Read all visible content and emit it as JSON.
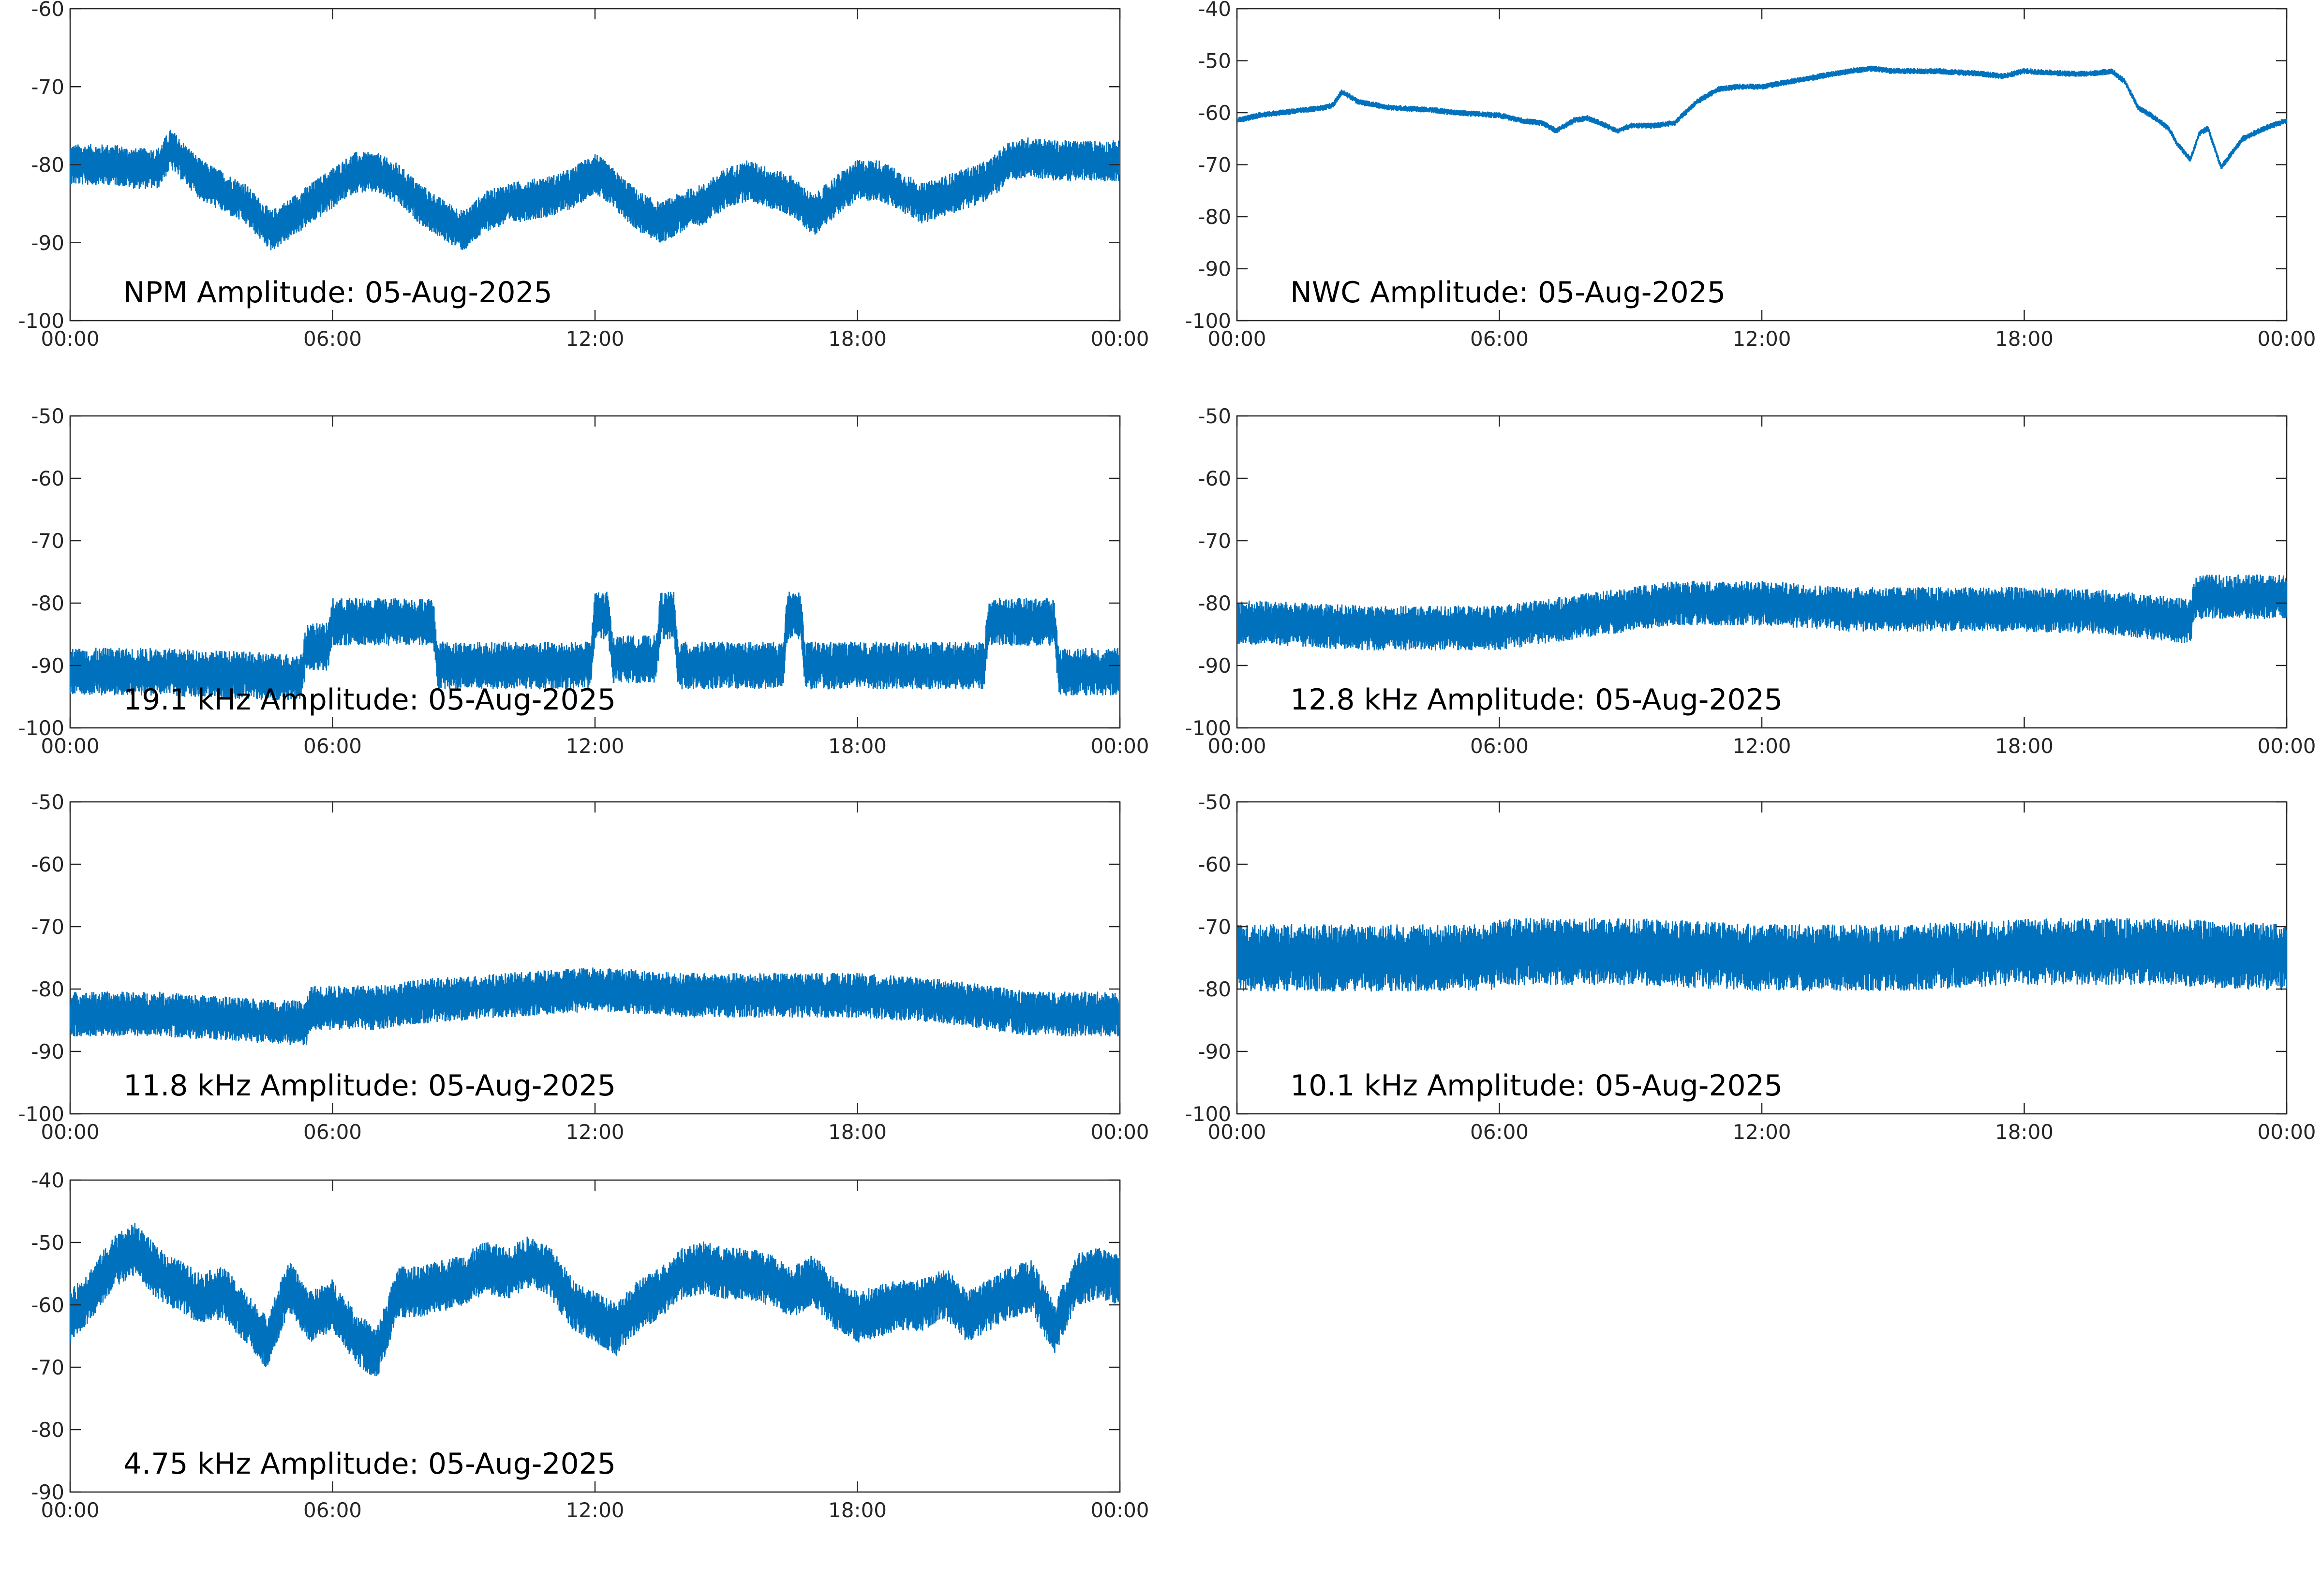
{
  "chart_data": [
    {
      "type": "line",
      "title": "NPM Amplitude: 05-Aug-2025",
      "xlabel": "",
      "ylabel": "",
      "x_tick_labels": [
        "00:00",
        "06:00",
        "12:00",
        "18:00",
        "00:00"
      ],
      "xlim": [
        0,
        24
      ],
      "ylim": [
        -100,
        -60
      ],
      "y_ticks": [
        -60,
        -70,
        -80,
        -90,
        -100
      ],
      "grid": false,
      "series": [
        {
          "color": "#0072bd",
          "x": [
            0,
            1,
            1.5,
            2,
            2.3,
            3,
            4,
            4.6,
            5,
            5.5,
            6,
            6.5,
            7,
            7.5,
            8,
            8.5,
            9,
            9.5,
            10,
            10.5,
            11,
            11.5,
            12,
            12.5,
            13,
            13.5,
            14,
            14.5,
            15,
            15.5,
            16,
            16.5,
            17,
            17.5,
            18,
            18.5,
            19,
            19.5,
            20,
            20.5,
            21,
            21.5,
            22,
            22.5,
            23,
            23.5,
            24
          ],
          "y": [
            -80,
            -80,
            -80.5,
            -80.5,
            -78,
            -82,
            -85,
            -88.5,
            -87,
            -85,
            -83,
            -81,
            -81,
            -82.5,
            -85,
            -87,
            -88.5,
            -86,
            -85,
            -84.5,
            -84,
            -83,
            -81,
            -83.5,
            -86,
            -87.5,
            -86,
            -85,
            -83,
            -82,
            -83,
            -84,
            -86.5,
            -84,
            -82,
            -82,
            -83.5,
            -85,
            -84,
            -83,
            -82,
            -79.5,
            -79,
            -79.5,
            -79.5,
            -79.5,
            -79.5
          ],
          "noise": 2.2
        }
      ]
    },
    {
      "type": "line",
      "title": "NWC Amplitude: 05-Aug-2025",
      "xlabel": "",
      "ylabel": "",
      "x_tick_labels": [
        "00:00",
        "06:00",
        "12:00",
        "18:00",
        "00:00"
      ],
      "xlim": [
        0,
        24
      ],
      "ylim": [
        -100,
        -40
      ],
      "y_ticks": [
        -40,
        -50,
        -60,
        -70,
        -80,
        -90,
        -100
      ],
      "grid": false,
      "series": [
        {
          "color": "#0072bd",
          "x": [
            0,
            0.5,
            1,
            2,
            2.2,
            2.4,
            2.8,
            3.5,
            4.5,
            5,
            6,
            6.5,
            7,
            7.3,
            7.7,
            8,
            8.3,
            8.7,
            9,
            9.5,
            10,
            10.5,
            11,
            11.5,
            12,
            13,
            14,
            14.5,
            15,
            16,
            17,
            17.5,
            18,
            19,
            19.5,
            20,
            20.3,
            20.6,
            20.9,
            21.3,
            21.5,
            21.8,
            22,
            22.2,
            22.5,
            23,
            23.5,
            24
          ],
          "y": [
            -61.5,
            -60.5,
            -60,
            -59,
            -58.5,
            -56,
            -58,
            -59,
            -59.5,
            -60,
            -60.5,
            -61.5,
            -62,
            -63.5,
            -61.5,
            -61,
            -62,
            -63.5,
            -62.5,
            -62.5,
            -62,
            -58,
            -55.5,
            -55,
            -55,
            -53.5,
            -52,
            -51.5,
            -52,
            -52,
            -52.5,
            -53,
            -52,
            -52.5,
            -52.5,
            -52,
            -54,
            -59,
            -60.5,
            -63,
            -66,
            -69,
            -64,
            -63,
            -70.5,
            -65,
            -63,
            -61.5
          ],
          "noise": 0.5
        }
      ]
    },
    {
      "type": "line",
      "title": "19.1 kHz Amplitude: 05-Aug-2025",
      "xlabel": "",
      "ylabel": "",
      "x_tick_labels": [
        "00:00",
        "06:00",
        "12:00",
        "18:00",
        "00:00"
      ],
      "xlim": [
        0,
        24
      ],
      "ylim": [
        -100,
        -50
      ],
      "y_ticks": [
        -50,
        -60,
        -70,
        -80,
        -90,
        -100
      ],
      "grid": false,
      "series": [
        {
          "color": "#0072bd",
          "x": [
            0,
            2,
            5.3,
            5.4,
            5.9,
            6.0,
            8.3,
            8.4,
            11.9,
            12.0,
            12.3,
            12.4,
            13.4,
            13.5,
            13.8,
            13.9,
            16.3,
            16.4,
            16.7,
            16.8,
            20.9,
            21.0,
            22.5,
            22.6,
            24
          ],
          "y": [
            -91,
            -91,
            -92,
            -87,
            -87,
            -83,
            -83,
            -90,
            -90,
            -82,
            -82,
            -89,
            -89,
            -82,
            -82,
            -90,
            -90,
            -82,
            -82,
            -90,
            -90,
            -83,
            -83,
            -91,
            -91
          ],
          "noise": 3.2
        }
      ]
    },
    {
      "type": "line",
      "title": "12.8 kHz Amplitude: 05-Aug-2025",
      "xlabel": "",
      "ylabel": "",
      "x_tick_labels": [
        "00:00",
        "06:00",
        "12:00",
        "18:00",
        "00:00"
      ],
      "xlim": [
        0,
        24
      ],
      "ylim": [
        -100,
        -50
      ],
      "y_ticks": [
        -50,
        -60,
        -70,
        -80,
        -90,
        -100
      ],
      "grid": false,
      "series": [
        {
          "color": "#0072bd",
          "x": [
            0,
            3,
            6,
            8,
            10,
            12,
            14,
            16,
            18,
            20,
            21.8,
            21.9,
            24
          ],
          "y": [
            -83,
            -84,
            -84,
            -82,
            -80,
            -80,
            -81,
            -81,
            -81,
            -81.5,
            -83,
            -79,
            -79
          ],
          "noise": 3
        }
      ]
    },
    {
      "type": "line",
      "title": "11.8 kHz Amplitude: 05-Aug-2025",
      "xlabel": "",
      "ylabel": "",
      "x_tick_labels": [
        "00:00",
        "06:00",
        "12:00",
        "18:00",
        "00:00"
      ],
      "xlim": [
        0,
        24
      ],
      "ylim": [
        -100,
        -50
      ],
      "y_ticks": [
        -50,
        -60,
        -70,
        -80,
        -90,
        -100
      ],
      "grid": false,
      "series": [
        {
          "color": "#0072bd",
          "x": [
            0,
            2,
            4,
            5.4,
            5.5,
            7,
            8,
            10,
            12,
            14,
            16,
            18,
            20,
            22,
            24
          ],
          "y": [
            -84,
            -84,
            -85,
            -85.5,
            -83,
            -83,
            -82,
            -81,
            -80,
            -81,
            -81,
            -81,
            -82,
            -84,
            -84
          ],
          "noise": 3
        }
      ]
    },
    {
      "type": "line",
      "title": "10.1 kHz Amplitude: 05-Aug-2025",
      "xlabel": "",
      "ylabel": "",
      "x_tick_labels": [
        "00:00",
        "06:00",
        "12:00",
        "18:00",
        "00:00"
      ],
      "xlim": [
        0,
        24
      ],
      "ylim": [
        -100,
        -50
      ],
      "y_ticks": [
        -50,
        -60,
        -70,
        -80,
        -90,
        -100
      ],
      "grid": false,
      "series": [
        {
          "color": "#0072bd",
          "x": [
            0,
            3,
            5.8,
            6,
            9,
            12,
            15,
            18,
            21,
            24
          ],
          "y": [
            -75,
            -75,
            -75,
            -74,
            -74,
            -75,
            -75,
            -74,
            -74,
            -75
          ],
          "noise": 4.5
        }
      ]
    },
    {
      "type": "line",
      "title": "4.75 kHz Amplitude: 05-Aug-2025",
      "xlabel": "",
      "ylabel": "",
      "x_tick_labels": [
        "00:00",
        "06:00",
        "12:00",
        "18:00",
        "00:00"
      ],
      "xlim": [
        0,
        24
      ],
      "ylim": [
        -90,
        -40
      ],
      "y_ticks": [
        -40,
        -50,
        -60,
        -70,
        -80,
        -90
      ],
      "grid": false,
      "series": [
        {
          "color": "#0072bd",
          "x": [
            0,
            0.5,
            1,
            1.5,
            2,
            2.5,
            3,
            3.5,
            4,
            4.5,
            5,
            5.5,
            6,
            6.5,
            7,
            7.5,
            8,
            8.5,
            9,
            9.5,
            10,
            10.5,
            11,
            11.5,
            12,
            12.5,
            13,
            13.5,
            14,
            14.5,
            15,
            15.5,
            16,
            16.5,
            17,
            17.5,
            18,
            18.5,
            19,
            19.5,
            20,
            20.5,
            21,
            21.5,
            22,
            22.5,
            23,
            23.5,
            24
          ],
          "y": [
            -62,
            -58,
            -53,
            -51,
            -55,
            -57,
            -59,
            -58,
            -62,
            -66,
            -57,
            -62,
            -60,
            -65,
            -68,
            -58,
            -58,
            -57,
            -56,
            -54,
            -55,
            -53,
            -55,
            -60,
            -62,
            -64,
            -60,
            -58,
            -55,
            -54,
            -55,
            -55,
            -56,
            -58,
            -56,
            -60,
            -62,
            -61,
            -60,
            -60,
            -58,
            -62,
            -60,
            -58,
            -57,
            -64,
            -56,
            -55,
            -56
          ],
          "noise": 3.5
        }
      ]
    }
  ]
}
